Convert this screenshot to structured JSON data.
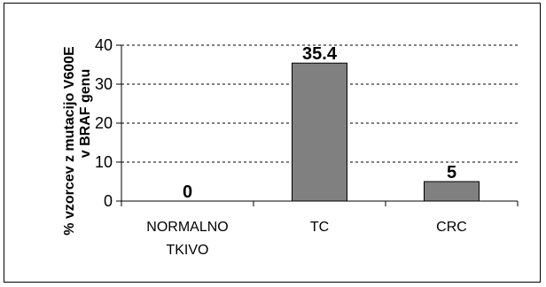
{
  "chart_data": {
    "type": "bar",
    "title": "",
    "xlabel": "",
    "ylabel_lines": [
      "% vzorcev z mutacijo V600E",
      "v BRAF genu"
    ],
    "categories": [
      {
        "lines": [
          "NORMALNO",
          "TKIVO"
        ]
      },
      {
        "lines": [
          "TC"
        ]
      },
      {
        "lines": [
          "CRC"
        ]
      }
    ],
    "values": [
      0,
      35.4,
      5
    ],
    "value_labels": [
      "0",
      "35.4",
      "5"
    ],
    "ylim": [
      0,
      40
    ],
    "yticks": [
      0,
      10,
      20,
      30,
      40
    ],
    "grid": "horizontal-dashed",
    "legend": "none",
    "colors": {
      "bar_fill": "#808080",
      "bar_stroke": "#000000",
      "grid": "#000000",
      "axis": "#000000",
      "frame": "#000000"
    }
  }
}
